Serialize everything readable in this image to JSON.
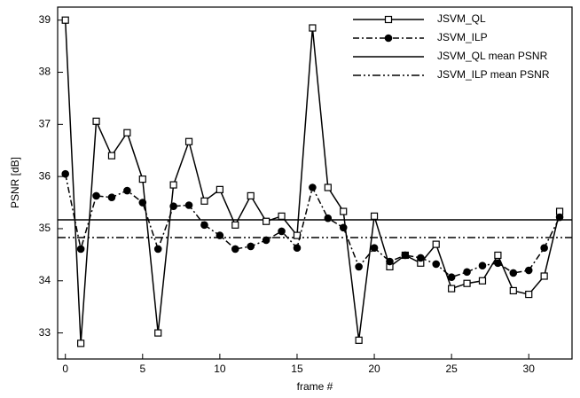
{
  "chart_data": {
    "type": "line",
    "xlabel": "frame #",
    "ylabel": "PSNR [dB]",
    "x": [
      0,
      1,
      2,
      3,
      4,
      5,
      6,
      7,
      8,
      9,
      10,
      11,
      12,
      13,
      14,
      15,
      16,
      17,
      18,
      19,
      20,
      21,
      22,
      23,
      24,
      25,
      26,
      27,
      28,
      29,
      30,
      31,
      32
    ],
    "series": [
      {
        "name": "JSVM_QL",
        "color": "#000000",
        "marker": "square",
        "dash": "solid",
        "values": [
          39.0,
          32.8,
          37.06,
          36.4,
          36.84,
          35.95,
          33.0,
          35.84,
          36.67,
          35.53,
          35.75,
          35.07,
          35.63,
          35.14,
          35.24,
          34.87,
          38.85,
          35.79,
          35.33,
          32.86,
          35.24,
          34.27,
          34.49,
          34.34,
          34.7,
          33.85,
          33.95,
          34.0,
          34.49,
          33.81,
          33.74,
          34.09,
          35.33
        ]
      },
      {
        "name": "JSVM_ILP",
        "color": "#000000",
        "marker": "circle",
        "dash": "dashdot",
        "values": [
          36.05,
          34.61,
          35.63,
          35.6,
          35.73,
          35.5,
          34.61,
          35.43,
          35.45,
          35.07,
          34.87,
          34.61,
          34.66,
          34.78,
          34.95,
          34.63,
          35.79,
          35.2,
          35.02,
          34.27,
          34.63,
          34.37,
          34.49,
          34.44,
          34.32,
          34.07,
          34.17,
          34.29,
          34.34,
          34.15,
          34.2,
          34.63,
          35.22
        ]
      }
    ],
    "hlines": [
      {
        "name": "JSVM_QL mean PSNR",
        "color": "#000000",
        "dash": "solid",
        "value": 35.17
      },
      {
        "name": "JSVM_ILP mean PSNR",
        "color": "#000000",
        "dash": "dashdotdot",
        "value": 34.83
      }
    ],
    "xlim": [
      -0.5,
      32.8
    ],
    "ylim": [
      32.5,
      39.25
    ],
    "xticks": [
      0,
      5,
      10,
      15,
      20,
      25,
      30
    ],
    "yticks": [
      33,
      34,
      35,
      36,
      37,
      38,
      39
    ],
    "legend": "upper right"
  }
}
